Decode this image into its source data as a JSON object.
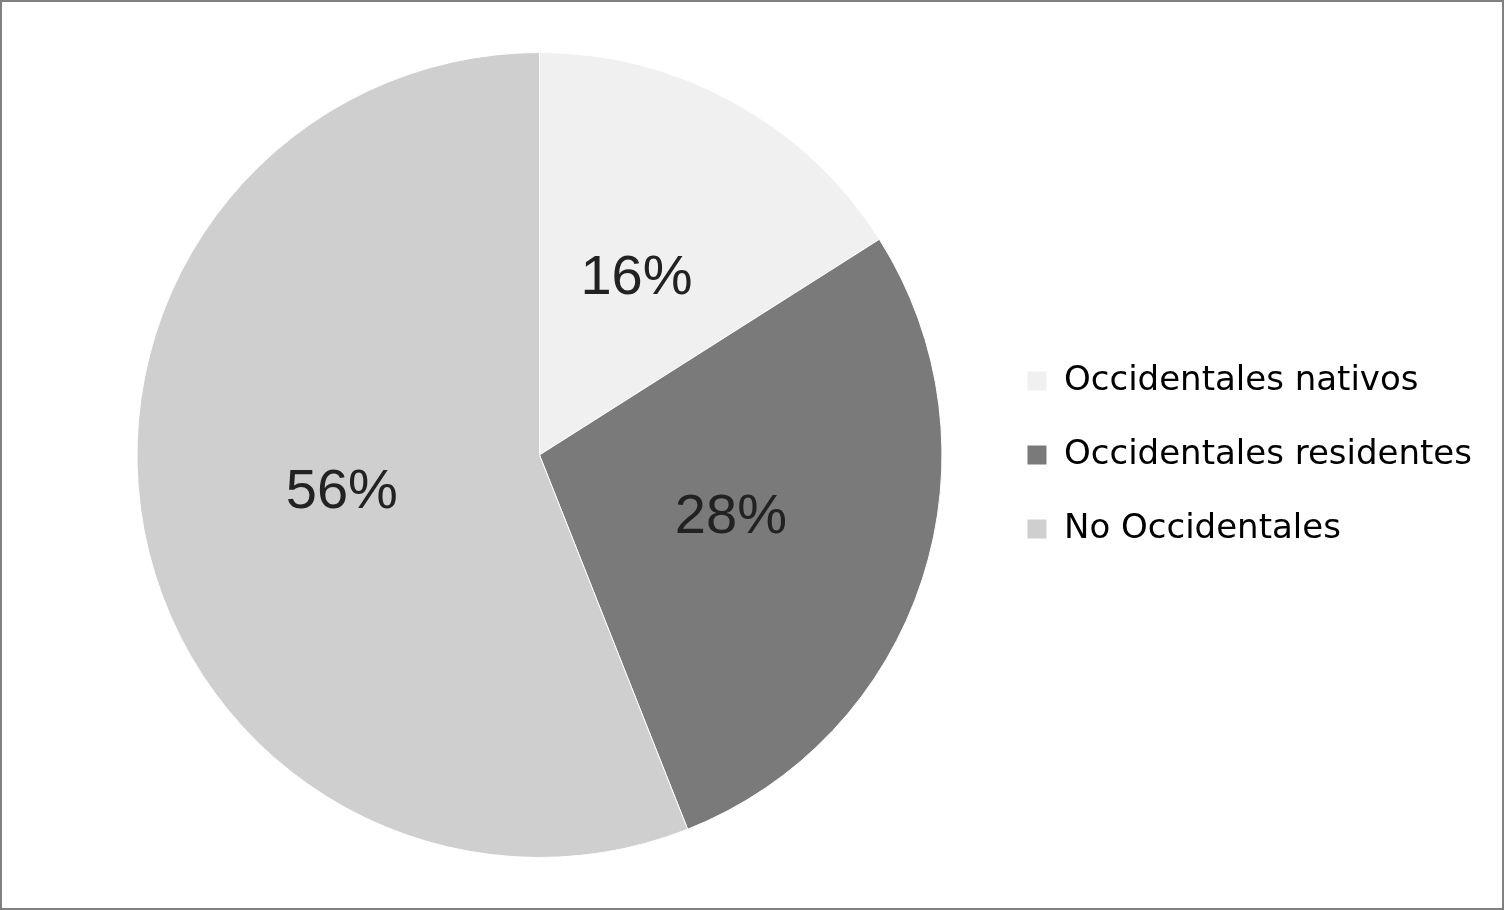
{
  "chart_data": {
    "type": "pie",
    "categories": [
      "Occidentales nativos",
      "Occidentales residentes",
      "No Occidentales"
    ],
    "values": [
      16,
      28,
      56
    ],
    "colors": [
      "#f0f0f0",
      "#7a7a7a",
      "#cfcfcf"
    ],
    "value_labels": [
      "16%",
      "28%",
      "56%"
    ],
    "legend": "right"
  }
}
